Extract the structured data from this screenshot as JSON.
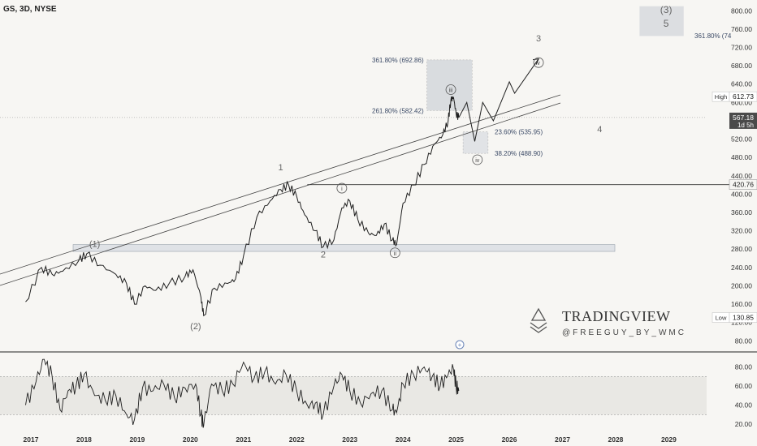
{
  "symbol_header": "GS, 3D, NYSE",
  "colors": {
    "background": "#f7f6f3",
    "price_line": "#1f1f1f",
    "grid_text": "#444444",
    "box_fill": "#dfe1e4",
    "wave_text": "#777777"
  },
  "chart_data": [
    {
      "type": "line",
      "title": "",
      "x_ticks": [
        "2017",
        "2018",
        "2019",
        "2020",
        "2021",
        "2022",
        "2023",
        "2024",
        "2025",
        "2026",
        "2027",
        "2028",
        "2029"
      ],
      "y_ticks": [
        "800.00",
        "760.00",
        "720.00",
        "680.00",
        "640.00",
        "600.00",
        "560.00",
        "520.00",
        "480.00",
        "440.00",
        "400.00",
        "360.00",
        "320.00",
        "280.00",
        "240.00",
        "200.00",
        "160.00",
        "120.00",
        "80.00"
      ],
      "ylim": [
        80,
        810
      ],
      "series": [
        {
          "points": [
            [
              2016.9,
              165
            ],
            [
              2017.2,
              240
            ],
            [
              2017.4,
              225
            ],
            [
              2017.6,
              232
            ],
            [
              2017.9,
              255
            ],
            [
              2018.05,
              270
            ],
            [
              2018.3,
              245
            ],
            [
              2018.6,
              225
            ],
            [
              2018.8,
              205
            ],
            [
              2018.95,
              160
            ],
            [
              2019.15,
              200
            ],
            [
              2019.35,
              190
            ],
            [
              2019.6,
              205
            ],
            [
              2019.9,
              220
            ],
            [
              2020.05,
              235
            ],
            [
              2020.2,
              175
            ],
            [
              2020.25,
              135
            ],
            [
              2020.45,
              195
            ],
            [
              2020.7,
              205
            ],
            [
              2020.85,
              215
            ],
            [
              2021.0,
              265
            ],
            [
              2021.25,
              350
            ],
            [
              2021.5,
              385
            ],
            [
              2021.7,
              410
            ],
            [
              2021.85,
              420
            ],
            [
              2022.0,
              395
            ],
            [
              2022.15,
              355
            ],
            [
              2022.35,
              320
            ],
            [
              2022.5,
              285
            ],
            [
              2022.7,
              300
            ],
            [
              2022.85,
              370
            ],
            [
              2023.0,
              385
            ],
            [
              2023.15,
              345
            ],
            [
              2023.35,
              315
            ],
            [
              2023.5,
              310
            ],
            [
              2023.65,
              335
            ],
            [
              2023.8,
              300
            ],
            [
              2023.88,
              290
            ],
            [
              2024.0,
              380
            ],
            [
              2024.2,
              420
            ],
            [
              2024.4,
              465
            ],
            [
              2024.6,
              510
            ],
            [
              2024.75,
              530
            ],
            [
              2024.85,
              560
            ],
            [
              2024.9,
              605
            ],
            [
              2024.95,
              612
            ],
            [
              2025.0,
              575
            ],
            [
              2025.05,
              567
            ]
          ],
          "last_value": "567.18"
        }
      ],
      "price_labels": [
        {
          "text": "High",
          "value": "612.73",
          "y": 612.73
        },
        {
          "text": "",
          "value": "567.18",
          "sub": "1d 5h",
          "y": 567.18
        },
        {
          "text": "",
          "value": "420.76",
          "y": 420.76
        },
        {
          "text": "Low",
          "value": "130.85",
          "y": 130.85
        }
      ],
      "fib_levels": [
        {
          "label": "361.80% (692.86)",
          "y": 692.86
        },
        {
          "label": "261.80% (582.42)",
          "y": 582.42
        },
        {
          "label": "23.60% (535.95)",
          "y": 535.95
        },
        {
          "label": "38.20% (488.90)",
          "y": 488.9
        },
        {
          "label": "361.80% (74",
          "y": 745
        }
      ],
      "support_zone": [
        275,
        290
      ],
      "horizontal_line": 420.76,
      "wave_labels": [
        {
          "text": "(1)",
          "x": 2018.2,
          "y": 285
        },
        {
          "text": "(2)",
          "x": 2020.1,
          "y": 105
        },
        {
          "text": "1",
          "x": 2021.7,
          "y": 452
        },
        {
          "text": "2",
          "x": 2022.5,
          "y": 262
        },
        {
          "text": "3",
          "x": 2026.55,
          "y": 733
        },
        {
          "text": "4",
          "x": 2027.7,
          "y": 535
        },
        {
          "text": "(3)",
          "x": 2028.95,
          "y": 795
        },
        {
          "text": "5",
          "x": 2028.95,
          "y": 765
        }
      ],
      "circled_labels": [
        {
          "text": "i",
          "x": 2022.85,
          "y": 413
        },
        {
          "text": "ii",
          "x": 2023.85,
          "y": 272
        },
        {
          "text": "iii",
          "x": 2024.9,
          "y": 628
        },
        {
          "text": "iv",
          "x": 2025.4,
          "y": 475
        },
        {
          "text": "v",
          "x": 2026.55,
          "y": 687
        }
      ],
      "projection_path": [
        [
          2025.05,
          567
        ],
        [
          2025.2,
          600
        ],
        [
          2025.35,
          515
        ],
        [
          2025.5,
          600
        ],
        [
          2025.7,
          560
        ],
        [
          2026.0,
          645
        ],
        [
          2026.1,
          620
        ],
        [
          2026.55,
          695
        ]
      ]
    },
    {
      "type": "line",
      "title": "",
      "y_ticks": [
        "80.00",
        "60.00",
        "40.00",
        "20.00"
      ],
      "ylim": [
        15,
        95
      ],
      "bands": [
        30,
        70
      ],
      "series": [
        {
          "points": [
            [
              2016.9,
              40
            ],
            [
              2017.1,
              65
            ],
            [
              2017.25,
              88
            ],
            [
              2017.4,
              70
            ],
            [
              2017.55,
              35
            ],
            [
              2017.7,
              55
            ],
            [
              2017.85,
              60
            ],
            [
              2018.0,
              72
            ],
            [
              2018.2,
              50
            ],
            [
              2018.4,
              45
            ],
            [
              2018.6,
              50
            ],
            [
              2018.8,
              30
            ],
            [
              2018.95,
              25
            ],
            [
              2019.1,
              58
            ],
            [
              2019.3,
              55
            ],
            [
              2019.5,
              62
            ],
            [
              2019.7,
              48
            ],
            [
              2019.9,
              58
            ],
            [
              2020.1,
              62
            ],
            [
              2020.2,
              30
            ],
            [
              2020.25,
              18
            ],
            [
              2020.4,
              62
            ],
            [
              2020.6,
              55
            ],
            [
              2020.8,
              62
            ],
            [
              2021.0,
              85
            ],
            [
              2021.2,
              68
            ],
            [
              2021.4,
              75
            ],
            [
              2021.6,
              62
            ],
            [
              2021.8,
              72
            ],
            [
              2022.0,
              55
            ],
            [
              2022.2,
              40
            ],
            [
              2022.35,
              42
            ],
            [
              2022.5,
              30
            ],
            [
              2022.7,
              60
            ],
            [
              2022.85,
              72
            ],
            [
              2023.0,
              55
            ],
            [
              2023.2,
              42
            ],
            [
              2023.4,
              52
            ],
            [
              2023.6,
              55
            ],
            [
              2023.8,
              35
            ],
            [
              2023.88,
              32
            ],
            [
              2024.0,
              62
            ],
            [
              2024.2,
              72
            ],
            [
              2024.4,
              80
            ],
            [
              2024.55,
              70
            ],
            [
              2024.7,
              60
            ],
            [
              2024.85,
              72
            ],
            [
              2024.95,
              78
            ],
            [
              2025.0,
              60
            ],
            [
              2025.05,
              55
            ]
          ]
        }
      ]
    }
  ],
  "watermark": {
    "title": "TRADINGVIEW",
    "handle": "@FREEGUY_BY_WMC"
  }
}
